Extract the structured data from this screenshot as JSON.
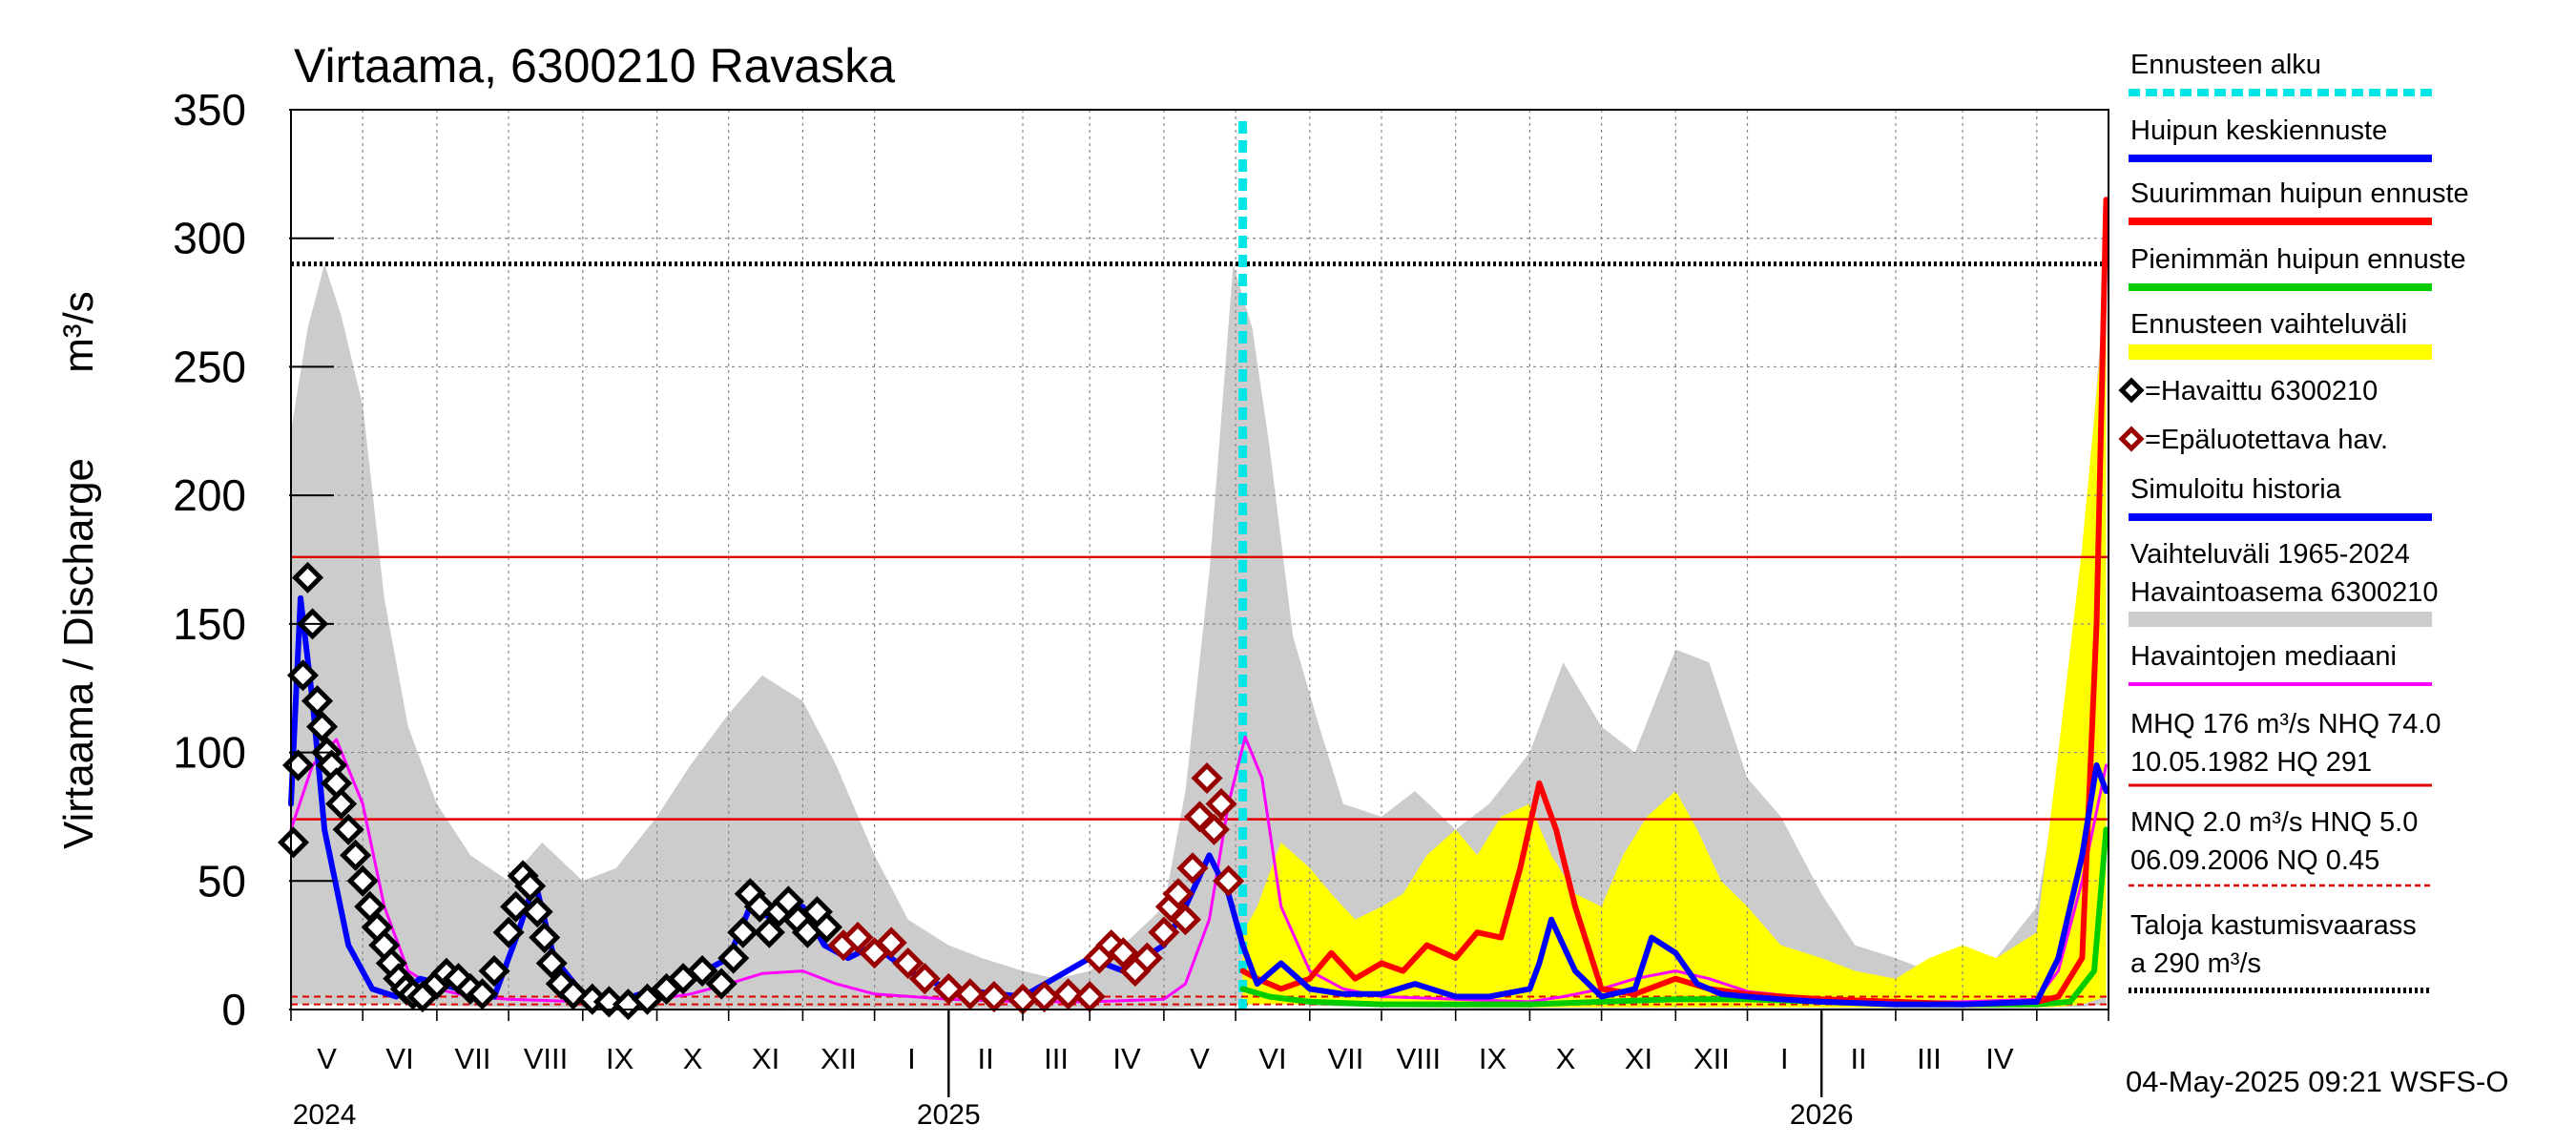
{
  "chart_data": {
    "type": "line",
    "title": "Virtaama, 6300210 Ravaska",
    "ylabel": "Virtaama / Discharge",
    "yunit": "m³/s",
    "ylim": [
      0,
      350
    ],
    "yticks": [
      0,
      50,
      100,
      150,
      200,
      250,
      300,
      350
    ],
    "xlim": [
      "2024-04-01",
      "2026-05-01"
    ],
    "x_months": [
      "V",
      "VI",
      "VII",
      "VIII",
      "IX",
      "X",
      "XI",
      "XII",
      "I",
      "II",
      "III",
      "IV",
      "V",
      "VI",
      "VII",
      "VIII",
      "IX",
      "X",
      "XI",
      "XII",
      "I",
      "II",
      "III",
      "IV"
    ],
    "x_years": [
      {
        "label": "2024",
        "date": "2024-04-15"
      },
      {
        "label": "2025",
        "date": "2025-01-01"
      },
      {
        "label": "2026",
        "date": "2026-01-01"
      }
    ],
    "forecast_start": "2025-05-04",
    "grid": true,
    "legend_position": "right",
    "reference_lines": [
      {
        "name": "MHQ",
        "value": 176,
        "color": "#e00000",
        "style": "solid"
      },
      {
        "name": "NHQ",
        "value": 74,
        "color": "#e00000",
        "style": "solid"
      },
      {
        "name": "MNQ",
        "value": 2.0,
        "color": "#e00000",
        "style": "dashed"
      },
      {
        "name": "HNQ",
        "value": 5.0,
        "color": "#e00000",
        "style": "dashed"
      },
      {
        "name": "Taloja kastumisvaarassa",
        "value": 290,
        "color": "#000000",
        "style": "dotted"
      }
    ],
    "series": [
      {
        "name": "Vaihteluväli 1965-2024 Havaintoasema 6300210",
        "type": "area",
        "color": "#cccccc",
        "x": [
          "2024-04-01",
          "2024-04-08",
          "2024-04-15",
          "2024-04-22",
          "2024-05-01",
          "2024-05-10",
          "2024-05-20",
          "2024-06-01",
          "2024-06-15",
          "2024-07-01",
          "2024-07-15",
          "2024-08-01",
          "2024-08-15",
          "2024-09-01",
          "2024-09-15",
          "2024-10-01",
          "2024-10-15",
          "2024-11-01",
          "2024-11-15",
          "2024-12-01",
          "2024-12-15",
          "2025-01-01",
          "2025-01-15",
          "2025-02-01",
          "2025-02-15",
          "2025-03-01",
          "2025-03-15",
          "2025-04-01",
          "2025-04-10",
          "2025-04-20",
          "2025-04-30",
          "2025-05-08",
          "2025-05-15",
          "2025-05-25",
          "2025-06-05",
          "2025-06-15",
          "2025-07-01",
          "2025-07-15",
          "2025-08-01",
          "2025-08-15",
          "2025-09-01",
          "2025-09-15",
          "2025-10-01",
          "2025-10-15",
          "2025-11-01",
          "2025-11-15",
          "2025-12-01",
          "2025-12-15",
          "2026-01-01",
          "2026-01-15",
          "2026-02-01",
          "2026-02-15",
          "2026-03-01",
          "2026-03-15",
          "2026-04-01",
          "2026-04-10",
          "2026-04-20",
          "2026-04-30"
        ],
        "low": [
          2,
          2,
          2,
          2,
          2,
          2,
          2,
          1.5,
          1.2,
          1,
          0.8,
          0.6,
          0.5,
          0.5,
          0.5,
          0.5,
          0.6,
          0.7,
          0.7,
          0.6,
          0.6,
          0.5,
          0.5,
          0.5,
          0.5,
          0.5,
          0.5,
          0.6,
          0.8,
          1,
          1.5,
          2,
          2,
          2,
          1.5,
          1.2,
          1,
          0.8,
          0.6,
          0.5,
          0.5,
          0.5,
          0.5,
          0.6,
          0.7,
          0.7,
          0.6,
          0.6,
          0.5,
          0.5,
          0.5,
          0.5,
          0.5,
          0.5,
          0.6,
          0.8,
          1,
          2
        ],
        "high": [
          225,
          265,
          290,
          270,
          235,
          160,
          110,
          80,
          60,
          50,
          65,
          50,
          55,
          75,
          95,
          115,
          130,
          120,
          95,
          60,
          35,
          25,
          20,
          15,
          12,
          15,
          25,
          40,
          85,
          170,
          290,
          265,
          220,
          145,
          110,
          80,
          75,
          85,
          70,
          80,
          100,
          135,
          110,
          100,
          140,
          135,
          90,
          75,
          45,
          25,
          20,
          15,
          15,
          20,
          40,
          90,
          170,
          290
        ]
      },
      {
        "name": "Ennusteen vaihteluväli",
        "type": "area",
        "color": "#ffff00",
        "x": [
          "2025-05-04",
          "2025-05-10",
          "2025-05-20",
          "2025-06-01",
          "2025-06-10",
          "2025-06-20",
          "2025-07-01",
          "2025-07-10",
          "2025-07-20",
          "2025-08-01",
          "2025-08-10",
          "2025-08-20",
          "2025-09-01",
          "2025-09-10",
          "2025-09-20",
          "2025-10-01",
          "2025-10-10",
          "2025-10-20",
          "2025-11-01",
          "2025-11-10",
          "2025-11-20",
          "2025-12-01",
          "2025-12-15",
          "2026-01-01",
          "2026-01-15",
          "2026-02-01",
          "2026-02-15",
          "2026-03-01",
          "2026-03-15",
          "2026-04-01",
          "2026-04-10",
          "2026-04-20",
          "2026-04-30"
        ],
        "low": [
          2,
          2,
          2,
          2,
          2,
          1.5,
          1.2,
          1,
          1,
          0.8,
          0.8,
          0.8,
          0.8,
          0.8,
          0.8,
          0.8,
          0.8,
          0.8,
          0.8,
          0.8,
          0.8,
          0.8,
          0.8,
          0.8,
          0.8,
          0.8,
          0.8,
          0.8,
          0.8,
          0.8,
          1,
          2,
          5
        ],
        "high": [
          30,
          40,
          65,
          55,
          45,
          35,
          40,
          45,
          60,
          70,
          60,
          75,
          80,
          60,
          45,
          40,
          60,
          75,
          85,
          70,
          50,
          40,
          25,
          20,
          15,
          12,
          20,
          25,
          20,
          30,
          100,
          180,
          280
        ]
      },
      {
        "name": "Havaintojen mediaani",
        "type": "line",
        "color": "#ff00ff",
        "width": 3,
        "x": [
          "2024-04-01",
          "2024-04-10",
          "2024-04-20",
          "2024-05-01",
          "2024-05-10",
          "2024-05-20",
          "2024-06-01",
          "2024-06-15",
          "2024-07-01",
          "2024-08-01",
          "2024-09-01",
          "2024-09-15",
          "2024-10-01",
          "2024-10-15",
          "2024-11-01",
          "2024-11-15",
          "2024-12-01",
          "2025-01-01",
          "2025-02-01",
          "2025-03-01",
          "2025-04-01",
          "2025-04-10",
          "2025-04-20",
          "2025-04-28",
          "2025-05-05",
          "2025-05-12",
          "2025-05-20",
          "2025-06-01",
          "2025-06-15",
          "2025-07-01",
          "2025-08-01",
          "2025-09-01",
          "2025-09-15",
          "2025-10-01",
          "2025-10-15",
          "2025-11-01",
          "2025-11-15",
          "2025-12-01",
          "2026-01-01",
          "2026-02-01",
          "2026-03-01",
          "2026-04-01",
          "2026-04-10",
          "2026-04-20",
          "2026-04-30"
        ],
        "y": [
          70,
          95,
          105,
          80,
          40,
          15,
          8,
          5,
          4,
          3,
          4,
          6,
          10,
          14,
          15,
          10,
          6,
          4,
          3,
          3,
          4,
          10,
          35,
          80,
          106,
          90,
          40,
          15,
          8,
          5,
          4,
          3,
          5,
          8,
          12,
          15,
          12,
          7,
          4,
          3,
          3,
          4,
          15,
          50,
          95
        ]
      },
      {
        "name": "Huipun keskiennuste",
        "type": "line",
        "color": "#0000ff",
        "width": 6,
        "x": [
          "2025-05-04",
          "2025-05-10",
          "2025-05-20",
          "2025-06-01",
          "2025-06-15",
          "2025-07-01",
          "2025-07-15",
          "2025-08-01",
          "2025-08-15",
          "2025-09-01",
          "2025-09-05",
          "2025-09-10",
          "2025-09-20",
          "2025-10-01",
          "2025-10-15",
          "2025-10-22",
          "2025-11-01",
          "2025-11-10",
          "2025-11-20",
          "2025-12-01",
          "2025-12-15",
          "2026-01-01",
          "2026-02-01",
          "2026-03-01",
          "2026-04-01",
          "2026-04-10",
          "2026-04-20",
          "2026-04-26",
          "2026-04-30"
        ],
        "y": [
          25,
          10,
          18,
          8,
          6,
          6,
          10,
          5,
          5,
          8,
          18,
          35,
          15,
          5,
          8,
          28,
          22,
          10,
          6,
          5,
          4,
          3,
          2,
          2,
          3,
          20,
          60,
          95,
          85
        ]
      },
      {
        "name": "Suurimman huipun ennuste",
        "type": "line",
        "color": "#ff0000",
        "width": 6,
        "x": [
          "2025-05-04",
          "2025-05-10",
          "2025-05-20",
          "2025-06-01",
          "2025-06-10",
          "2025-06-20",
          "2025-07-01",
          "2025-07-10",
          "2025-07-20",
          "2025-08-01",
          "2025-08-10",
          "2025-08-20",
          "2025-08-28",
          "2025-09-05",
          "2025-09-12",
          "2025-09-20",
          "2025-10-01",
          "2025-10-15",
          "2025-11-01",
          "2025-11-15",
          "2025-12-01",
          "2025-12-15",
          "2026-01-01",
          "2026-02-01",
          "2026-03-01",
          "2026-04-01",
          "2026-04-10",
          "2026-04-20",
          "2026-04-26",
          "2026-04-30"
        ],
        "y": [
          15,
          12,
          8,
          12,
          22,
          12,
          18,
          15,
          25,
          20,
          30,
          28,
          55,
          88,
          70,
          40,
          8,
          6,
          12,
          8,
          6,
          5,
          4,
          3,
          2,
          3,
          5,
          20,
          150,
          315
        ]
      },
      {
        "name": "Pienimmän huipun ennuste",
        "type": "line",
        "color": "#00cc00",
        "width": 6,
        "x": [
          "2025-05-04",
          "2025-05-15",
          "2025-06-01",
          "2025-07-01",
          "2025-08-01",
          "2025-09-01",
          "2025-10-01",
          "2025-11-01",
          "2025-12-01",
          "2026-01-01",
          "2026-02-01",
          "2026-03-01",
          "2026-04-01",
          "2026-04-15",
          "2026-04-25",
          "2026-04-30"
        ],
        "y": [
          8,
          5,
          3,
          2,
          2,
          2,
          3,
          4,
          4,
          3,
          2,
          2,
          2,
          3,
          15,
          70
        ]
      },
      {
        "name": "Simuloitu historia",
        "type": "line",
        "color": "#0000ff",
        "width": 6,
        "x": [
          "2024-04-01",
          "2024-04-05",
          "2024-04-10",
          "2024-04-15",
          "2024-04-25",
          "2024-05-05",
          "2024-05-15",
          "2024-05-25",
          "2024-06-10",
          "2024-06-25",
          "2024-07-05",
          "2024-07-12",
          "2024-07-20",
          "2024-08-01",
          "2024-08-15",
          "2024-09-01",
          "2024-09-15",
          "2024-10-01",
          "2024-10-10",
          "2024-10-20",
          "2024-11-01",
          "2024-11-10",
          "2024-11-20",
          "2024-12-01",
          "2024-12-15",
          "2025-01-01",
          "2025-02-01",
          "2025-03-01",
          "2025-03-15",
          "2025-04-01",
          "2025-04-10",
          "2025-04-20",
          "2025-04-28",
          "2025-05-04"
        ],
        "y": [
          80,
          160,
          120,
          70,
          25,
          8,
          5,
          12,
          8,
          5,
          30,
          50,
          20,
          6,
          3,
          8,
          12,
          20,
          40,
          35,
          40,
          25,
          20,
          25,
          15,
          8,
          5,
          20,
          15,
          25,
          40,
          60,
          45,
          25
        ]
      }
    ],
    "observed": {
      "name": "=Havaittu 6300210",
      "color": "#000000",
      "x": [
        "2024-04-02",
        "2024-04-04",
        "2024-04-06",
        "2024-04-08",
        "2024-04-10",
        "2024-04-12",
        "2024-04-14",
        "2024-04-16",
        "2024-04-18",
        "2024-04-20",
        "2024-04-22",
        "2024-04-25",
        "2024-04-28",
        "2024-05-01",
        "2024-05-04",
        "2024-05-07",
        "2024-05-10",
        "2024-05-13",
        "2024-05-16",
        "2024-05-19",
        "2024-05-22",
        "2024-05-26",
        "2024-06-01",
        "2024-06-05",
        "2024-06-10",
        "2024-06-15",
        "2024-06-20",
        "2024-06-25",
        "2024-07-01",
        "2024-07-04",
        "2024-07-07",
        "2024-07-10",
        "2024-07-13",
        "2024-07-16",
        "2024-07-19",
        "2024-07-23",
        "2024-07-28",
        "2024-08-05",
        "2024-08-12",
        "2024-08-20",
        "2024-08-28",
        "2024-09-05",
        "2024-09-12",
        "2024-09-20",
        "2024-09-28",
        "2024-10-03",
        "2024-10-07",
        "2024-10-10",
        "2024-10-14",
        "2024-10-18",
        "2024-10-22",
        "2024-10-26",
        "2024-10-30",
        "2024-11-03",
        "2024-11-07",
        "2024-11-11"
      ],
      "y": [
        65,
        95,
        130,
        168,
        150,
        120,
        110,
        100,
        95,
        88,
        80,
        70,
        60,
        50,
        40,
        32,
        25,
        18,
        12,
        8,
        6,
        5,
        10,
        14,
        12,
        8,
        6,
        15,
        30,
        40,
        52,
        48,
        38,
        28,
        18,
        10,
        6,
        4,
        3,
        2,
        4,
        8,
        12,
        15,
        10,
        20,
        30,
        45,
        40,
        30,
        38,
        42,
        35,
        30,
        38,
        32
      ]
    },
    "unreliable": {
      "name": "=Epäluotettava hav.",
      "color": "#990000",
      "x": [
        "2024-11-18",
        "2024-11-24",
        "2024-12-01",
        "2024-12-08",
        "2024-12-15",
        "2024-12-22",
        "2025-01-01",
        "2025-01-10",
        "2025-01-20",
        "2025-02-01",
        "2025-02-10",
        "2025-02-20",
        "2025-03-01",
        "2025-03-05",
        "2025-03-10",
        "2025-03-15",
        "2025-03-20",
        "2025-03-25",
        "2025-04-01",
        "2025-04-04",
        "2025-04-07",
        "2025-04-10",
        "2025-04-13",
        "2025-04-16",
        "2025-04-19",
        "2025-04-22",
        "2025-04-25",
        "2025-04-28"
      ],
      "y": [
        25,
        28,
        22,
        26,
        18,
        12,
        8,
        6,
        5,
        4,
        5,
        6,
        5,
        20,
        25,
        22,
        15,
        20,
        30,
        40,
        45,
        35,
        55,
        75,
        90,
        70,
        80,
        50
      ]
    }
  },
  "legend": {
    "forecast_start": "Ennusteen alku",
    "mean_forecast": "Huipun keskiennuste",
    "max_forecast": "Suurimman huipun ennuste",
    "min_forecast": "Pienimmän huipun ennuste",
    "forecast_range": "Ennusteen vaihteluväli",
    "observed": "=Havaittu 6300210",
    "unreliable": "=Epäluotettava hav.",
    "simulated": "Simuloitu historia",
    "range_line1": "Vaihteluväli 1965-2024",
    "range_line2": " Havaintoasema 6300210",
    "median": "Havaintojen mediaani",
    "stats1_line1": "MHQ  176 m³/s NHQ 74.0",
    "stats1_line2": "10.05.1982 HQ  291",
    "stats2_line1": "MNQ  2.0 m³/s HNQ  5.0",
    "stats2_line2": "06.09.2006 NQ 0.45",
    "flood_line1": "Taloja kastumisvaarass",
    "flood_line2": "a 290 m³/s"
  },
  "footer": "04-May-2025 09:21 WSFS-O",
  "colors": {
    "forecast_start": "#00e5e5",
    "blue": "#0000ff",
    "red": "#ff0000",
    "green": "#00cc00",
    "yellow": "#ffff00",
    "grey": "#cccccc",
    "magenta": "#ff00ff",
    "reference": "#e00000",
    "observed": "#000000",
    "unreliable": "#990000"
  }
}
